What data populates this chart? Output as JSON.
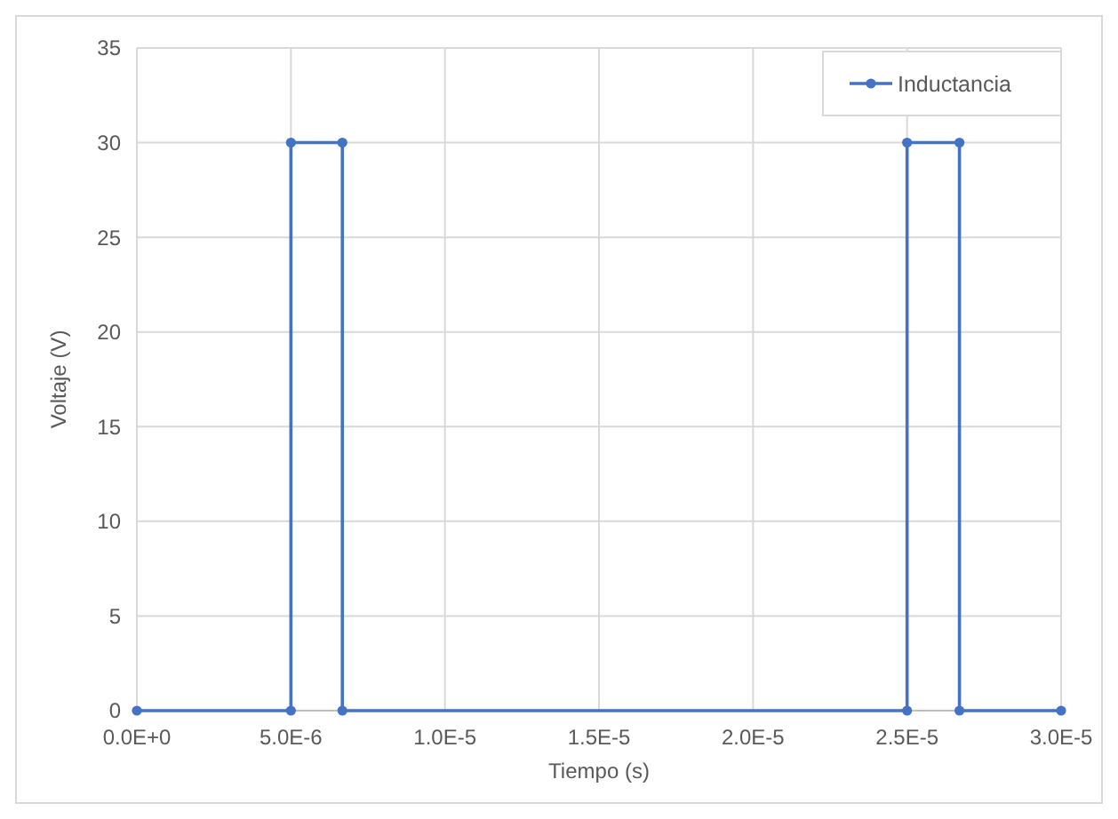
{
  "chart_data": {
    "type": "line",
    "xlabel": "Tiempo (s)",
    "ylabel": "Voltaje (V)",
    "series": [
      {
        "name": "Inductancia",
        "color": "#4472c4",
        "x": [
          0,
          5e-06,
          5e-06,
          6.67e-06,
          6.67e-06,
          2.5e-05,
          2.5e-05,
          2.67e-05,
          2.67e-05,
          3e-05
        ],
        "values": [
          0,
          0,
          30,
          30,
          0,
          0,
          30,
          30,
          0,
          0
        ]
      }
    ],
    "xlim": [
      0,
      3e-05
    ],
    "xticks": [
      {
        "value": 0,
        "label": "0.0E+0"
      },
      {
        "value": 5e-06,
        "label": "5.0E-6"
      },
      {
        "value": 1e-05,
        "label": "1.0E-5"
      },
      {
        "value": 1.5e-05,
        "label": "1.5E-5"
      },
      {
        "value": 2e-05,
        "label": "2.0E-5"
      },
      {
        "value": 2.5e-05,
        "label": "2.5E-5"
      },
      {
        "value": 3e-05,
        "label": "3.0E-5"
      }
    ],
    "ylim": [
      0,
      35
    ],
    "yticks": [
      0,
      5,
      10,
      15,
      20,
      25,
      30,
      35
    ],
    "grid": true,
    "legend": "top right",
    "marker": "circle",
    "line_style": "solid"
  }
}
